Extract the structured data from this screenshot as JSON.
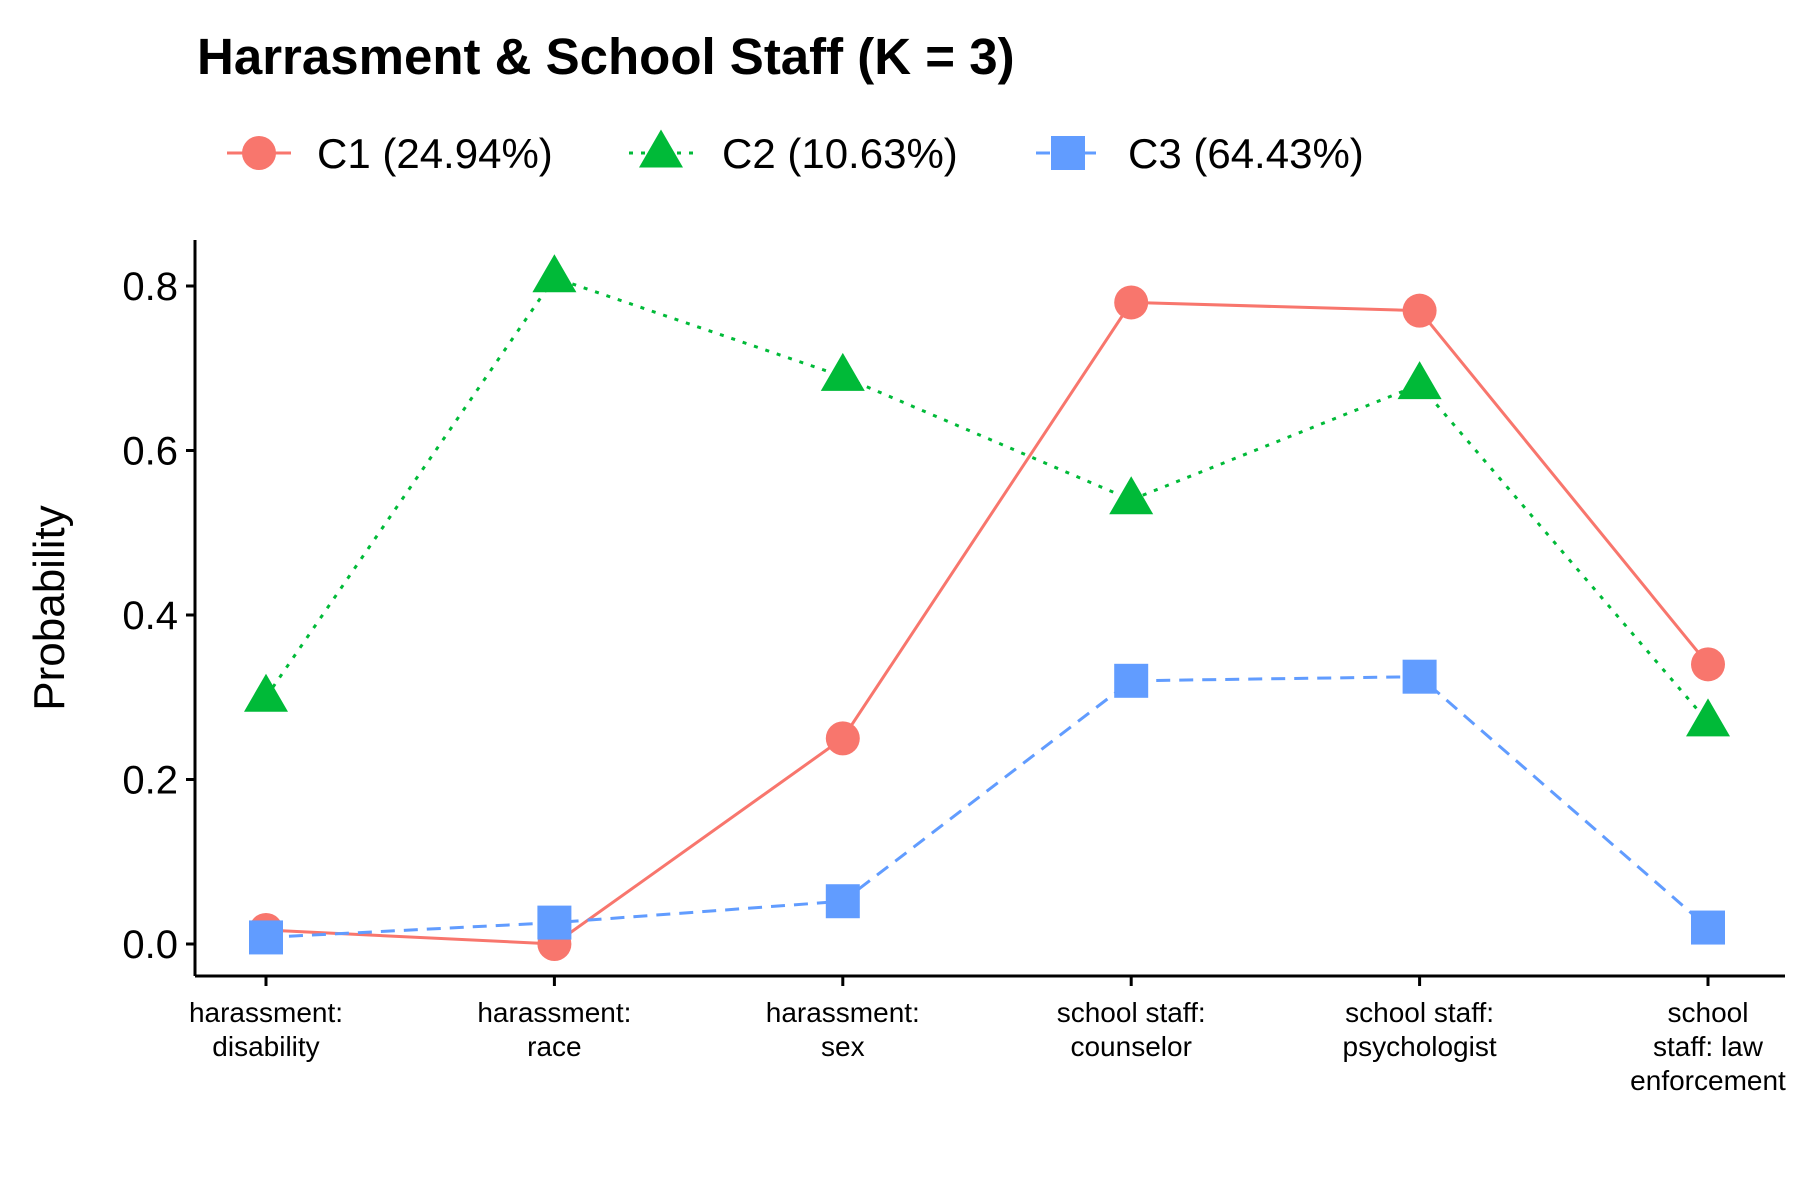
{
  "chart_data": {
    "type": "line",
    "title": "Harrasment & School Staff (K = 3)",
    "xlabel": "",
    "ylabel": "Probability",
    "ylim": [
      -0.04,
      0.85
    ],
    "yticks": [
      "0.0",
      "0.2",
      "0.4",
      "0.6",
      "0.8"
    ],
    "ytick_values": [
      0,
      0.2,
      0.4,
      0.6,
      0.8
    ],
    "grid": false,
    "legend_position": "top",
    "categories": [
      [
        "harassment:",
        "disability"
      ],
      [
        "harassment:",
        "race"
      ],
      [
        "harassment:",
        "sex"
      ],
      [
        "school staff:",
        "counselor"
      ],
      [
        "school staff:",
        "psychologist"
      ],
      [
        "school",
        "staff: law",
        "enforcement"
      ]
    ],
    "series": [
      {
        "name": "C1 (24.94%)",
        "values": [
          0.017,
          0.0,
          0.25,
          0.78,
          0.77,
          0.34
        ],
        "color": "#F8766D",
        "marker": "circle",
        "line_style": "solid"
      },
      {
        "name": "C2 (10.63%)",
        "values": [
          0.3,
          0.81,
          0.69,
          0.54,
          0.68,
          0.27
        ],
        "color": "#00BA38",
        "marker": "triangle",
        "line_style": "dotted"
      },
      {
        "name": "C3 (64.43%)",
        "values": [
          0.008,
          0.026,
          0.052,
          0.32,
          0.325,
          0.02
        ],
        "color": "#619CFF",
        "marker": "square",
        "line_style": "dashed"
      }
    ]
  }
}
